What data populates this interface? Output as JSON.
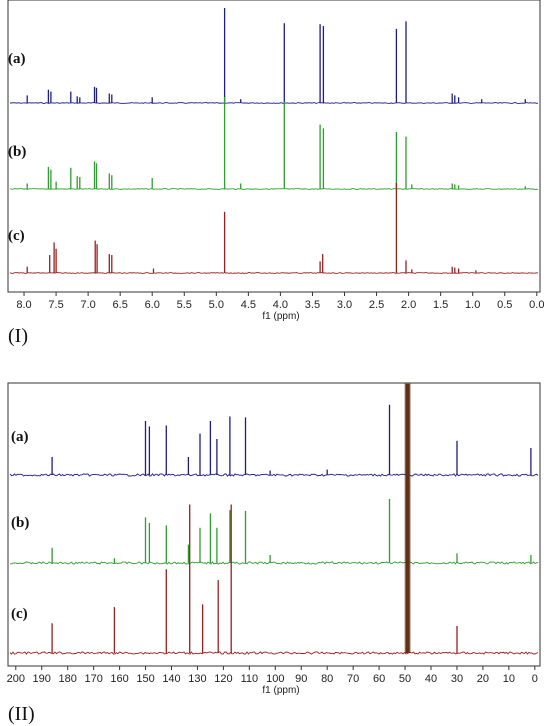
{
  "chart_data": [
    {
      "type": "line",
      "panel_label": "(I)",
      "xlabel": "f1 (ppm)",
      "x_reversed": true,
      "xlim": [
        8.25,
        -0.05
      ],
      "ticks": [
        "8.0",
        "7.5",
        "7.0",
        "6.5",
        "6.0",
        "5.5",
        "5.0",
        "4.5",
        "4.0",
        "3.5",
        "3.0",
        "2.5",
        "2.0",
        "1.5",
        "1.0",
        "0.5",
        "0.0"
      ],
      "series": [
        {
          "name": "(a)",
          "color": "#1c1c8c",
          "peaks": [
            [
              7.95,
              0.08
            ],
            [
              7.62,
              0.14
            ],
            [
              7.58,
              0.12
            ],
            [
              7.27,
              0.12
            ],
            [
              7.17,
              0.07
            ],
            [
              7.13,
              0.06
            ],
            [
              6.9,
              0.17
            ],
            [
              6.87,
              0.16
            ],
            [
              6.67,
              0.1
            ],
            [
              6.63,
              0.09
            ],
            [
              6.0,
              0.06
            ],
            [
              4.87,
              1.0
            ],
            [
              4.62,
              0.04
            ],
            [
              3.94,
              0.84
            ],
            [
              3.38,
              0.83
            ],
            [
              3.33,
              0.81
            ],
            [
              2.19,
              0.78
            ],
            [
              2.04,
              0.86
            ],
            [
              1.32,
              0.1
            ],
            [
              1.28,
              0.08
            ],
            [
              1.22,
              0.06
            ],
            [
              0.86,
              0.04
            ],
            [
              0.18,
              0.04
            ]
          ]
        },
        {
          "name": "(b)",
          "color": "#2e9e2e",
          "peaks": [
            [
              7.95,
              0.06
            ],
            [
              7.62,
              0.24
            ],
            [
              7.58,
              0.21
            ],
            [
              7.5,
              0.08
            ],
            [
              7.27,
              0.23
            ],
            [
              7.17,
              0.14
            ],
            [
              7.13,
              0.13
            ],
            [
              6.9,
              0.3
            ],
            [
              6.87,
              0.28
            ],
            [
              6.67,
              0.17
            ],
            [
              6.63,
              0.15
            ],
            [
              6.0,
              0.12
            ],
            [
              4.87,
              1.0
            ],
            [
              4.62,
              0.06
            ],
            [
              3.94,
              0.95
            ],
            [
              3.38,
              0.7
            ],
            [
              3.33,
              0.66
            ],
            [
              2.19,
              0.62
            ],
            [
              2.04,
              0.57
            ],
            [
              1.95,
              0.05
            ],
            [
              1.32,
              0.06
            ],
            [
              1.28,
              0.05
            ],
            [
              1.22,
              0.04
            ],
            [
              0.18,
              0.03
            ]
          ]
        },
        {
          "name": "(c)",
          "color": "#9a1e1e",
          "peaks": [
            [
              7.95,
              0.07
            ],
            [
              7.6,
              0.2
            ],
            [
              7.53,
              0.34
            ],
            [
              7.5,
              0.27
            ],
            [
              6.89,
              0.36
            ],
            [
              6.86,
              0.32
            ],
            [
              6.67,
              0.21
            ],
            [
              6.63,
              0.2
            ],
            [
              5.98,
              0.05
            ],
            [
              4.87,
              0.68
            ],
            [
              3.38,
              0.13
            ],
            [
              3.34,
              0.21
            ],
            [
              2.19,
              1.0
            ],
            [
              2.04,
              0.14
            ],
            [
              1.95,
              0.04
            ],
            [
              1.32,
              0.07
            ],
            [
              1.28,
              0.06
            ],
            [
              1.22,
              0.05
            ],
            [
              0.95,
              0.03
            ]
          ]
        }
      ]
    },
    {
      "type": "line",
      "panel_label": "(II)",
      "xlabel": "f1 (ppm)",
      "x_reversed": true,
      "xlim": [
        203,
        -2
      ],
      "ticks": [
        "200",
        "190",
        "180",
        "170",
        "160",
        "150",
        "140",
        "130",
        "120",
        "110",
        "100",
        "90",
        "80",
        "70",
        "60",
        "50",
        "40",
        "30",
        "20",
        "10",
        "0"
      ],
      "series": [
        {
          "name": "(a)",
          "color": "#1c1c8c",
          "peaks": [
            [
              186.0,
              0.2
            ],
            [
              150.0,
              0.6
            ],
            [
              148.5,
              0.54
            ],
            [
              142.0,
              0.55
            ],
            [
              133.5,
              0.2
            ],
            [
              129.0,
              0.46
            ],
            [
              125.0,
              0.6
            ],
            [
              122.5,
              0.4
            ],
            [
              117.5,
              0.65
            ],
            [
              111.5,
              0.64
            ],
            [
              102.0,
              0.05
            ],
            [
              80.0,
              0.06
            ],
            [
              56.0,
              0.78
            ],
            [
              49.0,
              1.0
            ],
            [
              30.0,
              0.38
            ],
            [
              1.5,
              0.3
            ]
          ]
        },
        {
          "name": "(b)",
          "color": "#2e9e2e",
          "peaks": [
            [
              186.0,
              0.19
            ],
            [
              162.0,
              0.06
            ],
            [
              150.0,
              0.57
            ],
            [
              148.5,
              0.5
            ],
            [
              142.0,
              0.47
            ],
            [
              133.5,
              0.23
            ],
            [
              129.0,
              0.44
            ],
            [
              125.0,
              0.62
            ],
            [
              122.5,
              0.44
            ],
            [
              117.5,
              0.66
            ],
            [
              111.5,
              0.65
            ],
            [
              102.0,
              0.1
            ],
            [
              56.0,
              0.8
            ],
            [
              49.0,
              1.0
            ],
            [
              30.0,
              0.12
            ],
            [
              1.5,
              0.1
            ]
          ]
        },
        {
          "name": "(c)",
          "color": "#9a1e1e",
          "peaks": [
            [
              186.0,
              0.11
            ],
            [
              162.0,
              0.17
            ],
            [
              142.0,
              0.31
            ],
            [
              133.0,
              0.55
            ],
            [
              128.0,
              0.18
            ],
            [
              122.0,
              0.27
            ],
            [
              117.0,
              0.55
            ],
            [
              49.0,
              1.0
            ],
            [
              30.0,
              0.1
            ]
          ]
        }
      ]
    }
  ]
}
